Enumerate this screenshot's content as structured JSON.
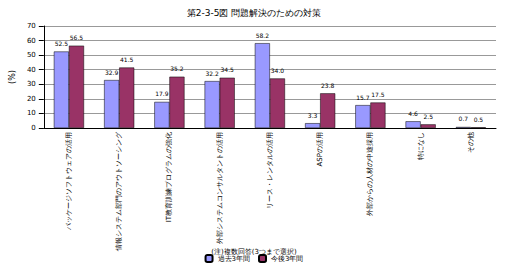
{
  "chart_data": {
    "type": "bar",
    "title": "第2-3-5図 問題解決のための対策",
    "y_label": "(%)",
    "note": "(注)複数回答(3つまで選択)",
    "categories": [
      "パッケージソフトウェアの活用",
      "情報システム部門のアウトソーシング",
      "IT教育訓練プログラムの強化",
      "外部システムコンサルタントの活用",
      "リース・レンタルの活用",
      "ASPの活用",
      "外部からの人材の中途採用",
      "特になし",
      "その他"
    ],
    "series": [
      {
        "name": "過去3年間",
        "color": "#9999ff",
        "values": [
          52.5,
          32.9,
          17.9,
          32.2,
          58.2,
          3.3,
          15.7,
          4.6,
          0.7
        ],
        "value_labels": [
          "52.5",
          "32.9",
          "17.9",
          "32.2",
          "58.2",
          "3.3",
          "15.7",
          "4.6",
          "0.7"
        ]
      },
      {
        "name": "今後3年間",
        "color": "#993366",
        "values": [
          56.5,
          41.5,
          35.2,
          34.5,
          34.0,
          23.8,
          17.5,
          2.5,
          0.5
        ],
        "value_labels": [
          "56.5",
          "41.5",
          "35.2",
          "34.5",
          "34.0",
          "23.8",
          "17.5",
          "2.5",
          "0.5"
        ]
      }
    ],
    "ylim": [
      0,
      70
    ],
    "yticks": [
      0,
      10,
      20,
      30,
      40,
      50,
      60,
      70
    ],
    "grid": true,
    "data_labels": true,
    "legend": "bottom"
  }
}
